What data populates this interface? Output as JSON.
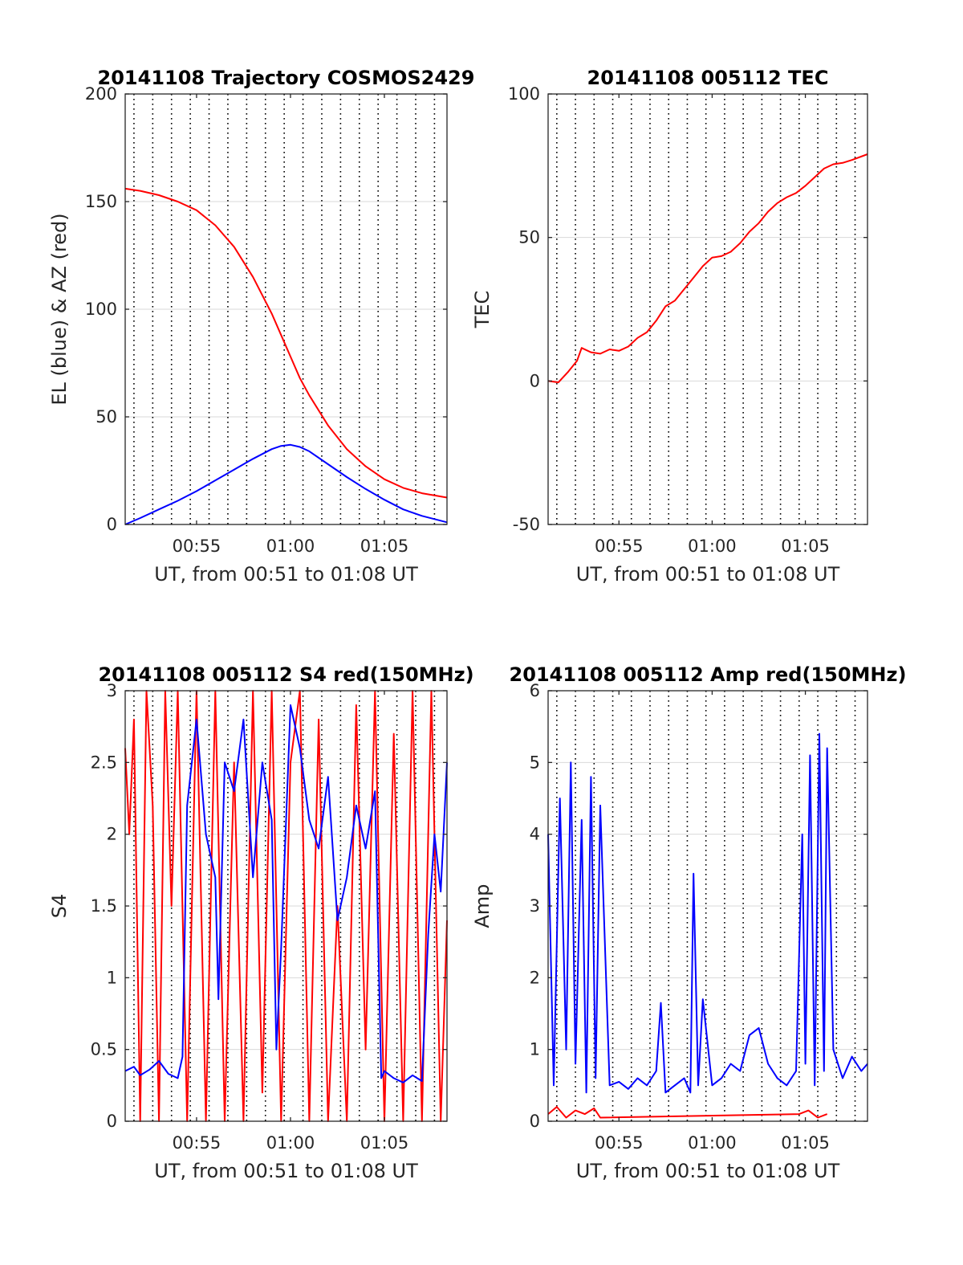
{
  "colors": {
    "series_blue": "#0000ff",
    "series_red": "#ff0000",
    "grid": "#d9d9d9",
    "dotted_lines": "#000000",
    "axes": "#262626"
  },
  "chart_data": [
    {
      "type": "line",
      "title": "20141108 Trajectory COSMOS2429",
      "xlabel": "UT, from 00:51 to 01:08 UT",
      "ylabel": "EL (blue) & AZ (red)",
      "xlim": [
        "00:51:12",
        "01:08:20"
      ],
      "ylim": [
        0,
        200
      ],
      "x_ticks": [
        "00:55",
        "01:00",
        "01:05"
      ],
      "y_ticks": [
        "0",
        "50",
        "100",
        "150",
        "200"
      ],
      "grid": "horizontal",
      "vertical_dotted_lines": [
        "00:51:40",
        "00:52:40",
        "00:53:40",
        "00:54:40",
        "00:55:40",
        "00:56:40",
        "00:57:40",
        "00:58:40",
        "00:59:40",
        "01:00:40",
        "01:01:40",
        "01:02:40",
        "01:03:40",
        "01:04:40",
        "01:05:40",
        "01:06:40",
        "01:07:40"
      ],
      "series": [
        {
          "color": "#ff0000",
          "x": [
            "00:51:12",
            "00:52:00",
            "00:53:00",
            "00:54:00",
            "00:55:00",
            "00:56:00",
            "00:57:00",
            "00:58:00",
            "00:59:00",
            "00:59:30",
            "01:00:00",
            "01:00:30",
            "01:01:00",
            "01:02:00",
            "01:03:00",
            "01:04:00",
            "01:05:00",
            "01:06:00",
            "01:07:00",
            "01:08:20"
          ],
          "values": [
            156,
            155,
            153,
            150,
            146,
            139,
            129,
            115,
            98,
            88,
            78,
            68,
            60,
            46,
            35,
            27,
            21,
            17,
            14.5,
            12.5
          ]
        },
        {
          "color": "#0000ff",
          "x": [
            "00:51:12",
            "00:52:00",
            "00:53:00",
            "00:54:00",
            "00:55:00",
            "00:56:00",
            "00:57:00",
            "00:58:00",
            "00:59:00",
            "00:59:30",
            "01:00:00",
            "01:00:30",
            "01:01:00",
            "01:02:00",
            "01:03:00",
            "01:04:00",
            "01:05:00",
            "01:06:00",
            "01:07:00",
            "01:08:20"
          ],
          "values": [
            0,
            3,
            7,
            11,
            15.5,
            20.5,
            25.5,
            30.5,
            35,
            36.5,
            37,
            36,
            34,
            28,
            22,
            16.5,
            11.5,
            7,
            4,
            1
          ]
        }
      ]
    },
    {
      "type": "line",
      "title": "20141108 005112 TEC",
      "xlabel": "UT, from 00:51 to 01:08 UT",
      "ylabel": "TEC",
      "xlim": [
        "00:51:12",
        "01:08:20"
      ],
      "ylim": [
        -50,
        100
      ],
      "x_ticks": [
        "00:55",
        "01:00",
        "01:05"
      ],
      "y_ticks": [
        "-50",
        "0",
        "50",
        "100"
      ],
      "grid": "horizontal",
      "vertical_dotted_lines": [
        "00:51:40",
        "00:52:40",
        "00:53:40",
        "00:54:40",
        "00:55:40",
        "00:56:40",
        "00:57:40",
        "00:58:40",
        "00:59:40",
        "01:00:40",
        "01:01:40",
        "01:02:40",
        "01:03:40",
        "01:04:40",
        "01:05:40",
        "01:06:40",
        "01:07:40"
      ],
      "series": [
        {
          "color": "#ff0000",
          "x": [
            "00:51:12",
            "00:51:45",
            "00:52:15",
            "00:52:45",
            "00:53:00",
            "00:53:30",
            "00:54:00",
            "00:54:30",
            "00:55:00",
            "00:55:30",
            "00:56:00",
            "00:56:30",
            "00:57:00",
            "00:57:30",
            "00:58:00",
            "00:58:30",
            "00:59:00",
            "00:59:30",
            "01:00:00",
            "01:00:30",
            "01:01:00",
            "01:01:30",
            "01:02:00",
            "01:02:30",
            "01:03:00",
            "01:03:30",
            "01:04:00",
            "01:04:30",
            "01:05:00",
            "01:05:30",
            "01:06:00",
            "01:06:30",
            "01:07:00",
            "01:07:30",
            "01:08:20"
          ],
          "values": [
            0,
            -0.5,
            3,
            7,
            11.5,
            10,
            9.5,
            11,
            10.5,
            12,
            15,
            17,
            21,
            26,
            28,
            32,
            36,
            40,
            43,
            43.5,
            45,
            48,
            52,
            55,
            59,
            62,
            64,
            65.5,
            68,
            71,
            74,
            75.5,
            76,
            77,
            79
          ]
        }
      ]
    },
    {
      "type": "line",
      "title": "20141108 005112 S4 red(150MHz)",
      "xlabel": "UT, from 00:51 to 01:08 UT",
      "ylabel": "S4",
      "xlim": [
        "00:51:12",
        "01:08:20"
      ],
      "ylim": [
        0,
        3
      ],
      "x_ticks": [
        "00:55",
        "01:00",
        "01:05"
      ],
      "y_ticks": [
        "0",
        "0.5",
        "1",
        "1.5",
        "2",
        "2.5",
        "3"
      ],
      "grid": "horizontal",
      "vertical_dotted_lines": [
        "00:51:40",
        "00:52:40",
        "00:53:40",
        "00:54:40",
        "00:55:40",
        "00:56:40",
        "00:57:40",
        "00:58:40",
        "00:59:40",
        "01:00:40",
        "01:01:40",
        "01:02:40",
        "01:03:40",
        "01:04:40",
        "01:05:40",
        "01:06:40",
        "01:07:40"
      ],
      "series": [
        {
          "color": "#ff0000",
          "x": [
            "00:51:12",
            "00:51:25",
            "00:51:40",
            "00:52:00",
            "00:52:20",
            "00:52:40",
            "00:53:00",
            "00:53:20",
            "00:53:40",
            "00:54:00",
            "00:54:30",
            "00:55:00",
            "00:55:30",
            "00:56:00",
            "00:56:30",
            "00:57:00",
            "00:57:30",
            "00:58:00",
            "00:58:30",
            "00:59:00",
            "00:59:30",
            "01:00:00",
            "01:00:30",
            "01:01:00",
            "01:01:30",
            "01:02:00",
            "01:02:30",
            "01:03:00",
            "01:03:30",
            "01:04:00",
            "01:04:30",
            "01:05:00",
            "01:05:30",
            "01:06:00",
            "01:06:30",
            "01:07:00",
            "01:07:30",
            "01:08:00",
            "01:08:20"
          ],
          "values": [
            2.6,
            2.0,
            2.8,
            0,
            3,
            2.2,
            0,
            3,
            1.5,
            3,
            0,
            3,
            0,
            3,
            0,
            2.5,
            0,
            3,
            0.2,
            3,
            0,
            2.5,
            3,
            0,
            2.8,
            0,
            1.5,
            0,
            2.9,
            0.5,
            3,
            0,
            2.7,
            0,
            3,
            0,
            3,
            0,
            1.4
          ]
        },
        {
          "color": "#0000ff",
          "x": [
            "00:51:12",
            "00:51:40",
            "00:52:00",
            "00:52:30",
            "00:53:00",
            "00:53:30",
            "00:54:00",
            "00:54:15",
            "00:54:30",
            "00:55:00",
            "00:55:30",
            "00:56:00",
            "00:56:10",
            "00:56:30",
            "00:57:00",
            "00:57:30",
            "00:58:00",
            "00:58:30",
            "00:59:00",
            "00:59:15",
            "00:59:30",
            "01:00:00",
            "01:00:30",
            "01:01:00",
            "01:01:30",
            "01:02:00",
            "01:02:30",
            "01:03:00",
            "01:03:30",
            "01:04:00",
            "01:04:30",
            "01:04:50",
            "01:05:00",
            "01:05:30",
            "01:06:00",
            "01:06:30",
            "01:07:00",
            "01:07:20",
            "01:07:40",
            "01:08:00",
            "01:08:20"
          ],
          "values": [
            0.35,
            0.38,
            0.32,
            0.36,
            0.42,
            0.33,
            0.3,
            0.45,
            2.2,
            2.8,
            2.0,
            1.7,
            0.85,
            2.5,
            2.3,
            2.8,
            1.7,
            2.5,
            2.1,
            0.5,
            1.2,
            2.9,
            2.6,
            2.1,
            1.9,
            2.4,
            1.4,
            1.7,
            2.2,
            1.9,
            2.3,
            0.3,
            0.35,
            0.3,
            0.27,
            0.32,
            0.28,
            1.3,
            2.0,
            1.6,
            2.5
          ]
        }
      ]
    },
    {
      "type": "line",
      "title": "20141108 005112 Amp red(150MHz)",
      "xlabel": "UT, from 00:51 to 01:08 UT",
      "ylabel": "Amp",
      "xlim": [
        "00:51:12",
        "01:08:20"
      ],
      "ylim": [
        0,
        6
      ],
      "x_ticks": [
        "00:55",
        "01:00",
        "01:05"
      ],
      "y_ticks": [
        "0",
        "1",
        "2",
        "3",
        "4",
        "5",
        "6"
      ],
      "grid": "horizontal",
      "vertical_dotted_lines": [
        "00:51:40",
        "00:52:40",
        "00:53:40",
        "00:54:40",
        "00:55:40",
        "00:56:40",
        "00:57:40",
        "00:58:40",
        "00:59:40",
        "01:00:40",
        "01:01:40",
        "01:02:40",
        "01:03:40",
        "01:04:40",
        "01:05:40",
        "01:06:40",
        "01:07:40"
      ],
      "series": [
        {
          "color": "#ff0000",
          "x": [
            "00:51:12",
            "00:51:40",
            "00:52:10",
            "00:52:40",
            "00:53:10",
            "00:53:40",
            "00:54:00",
            "01:04:40",
            "01:05:10",
            "01:05:40",
            "01:06:10"
          ],
          "values": [
            0.1,
            0.2,
            0.05,
            0.15,
            0.1,
            0.18,
            0.05,
            0.1,
            0.15,
            0.05,
            0.1
          ]
        },
        {
          "color": "#0000ff",
          "x": [
            "00:51:12",
            "00:51:30",
            "00:51:50",
            "00:52:10",
            "00:52:25",
            "00:52:40",
            "00:53:00",
            "00:53:15",
            "00:53:30",
            "00:53:45",
            "00:54:00",
            "00:54:30",
            "00:55:00",
            "00:55:30",
            "00:56:00",
            "00:56:30",
            "00:57:00",
            "00:57:15",
            "00:57:30",
            "00:58:00",
            "00:58:30",
            "00:58:50",
            "00:59:00",
            "00:59:15",
            "00:59:30",
            "01:00:00",
            "01:00:30",
            "01:01:00",
            "01:01:30",
            "01:02:00",
            "01:02:30",
            "01:03:00",
            "01:03:30",
            "01:04:00",
            "01:04:30",
            "01:04:50",
            "01:05:00",
            "01:05:15",
            "01:05:30",
            "01:05:45",
            "01:06:00",
            "01:06:10",
            "01:06:30",
            "01:07:00",
            "01:07:30",
            "01:08:00",
            "01:08:20"
          ],
          "values": [
            4.0,
            0.5,
            4.5,
            1.0,
            5.0,
            0.8,
            4.2,
            0.4,
            4.8,
            0.6,
            4.4,
            0.5,
            0.55,
            0.45,
            0.6,
            0.5,
            0.7,
            1.65,
            0.4,
            0.5,
            0.6,
            0.4,
            3.45,
            0.5,
            1.7,
            0.5,
            0.6,
            0.8,
            0.7,
            1.2,
            1.3,
            0.8,
            0.6,
            0.5,
            0.7,
            4.0,
            0.8,
            5.1,
            0.5,
            5.4,
            0.7,
            5.2,
            1.0,
            0.6,
            0.9,
            0.7,
            0.8
          ]
        }
      ]
    }
  ]
}
